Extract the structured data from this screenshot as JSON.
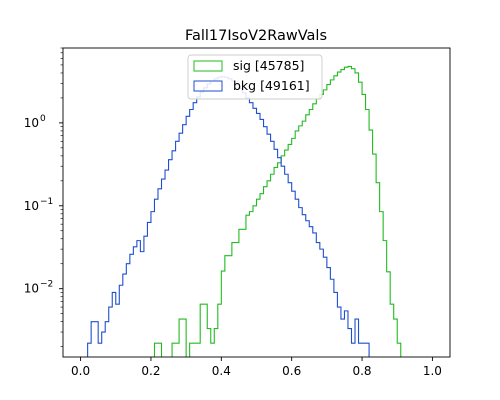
{
  "chart_data": {
    "type": "histogram",
    "title": "Fall17IsoV2RawVals",
    "xlabel": "",
    "ylabel": "",
    "xlim": [
      -0.05,
      1.05
    ],
    "ylim": [
      0.0015,
      8
    ],
    "yscale": "log",
    "grid": false,
    "legend_position": "top-center",
    "x_ticks": [
      0.0,
      0.2,
      0.4,
      0.6,
      0.8,
      1.0
    ],
    "x_tick_labels": [
      "0.0",
      "0.2",
      "0.4",
      "0.6",
      "0.8",
      "1.0"
    ],
    "y_ticks": [
      0.01,
      0.1,
      1
    ],
    "bin_edges": [
      0.0,
      0.01,
      0.02,
      0.03,
      0.04,
      0.05,
      0.06,
      0.07,
      0.08,
      0.09,
      0.1,
      0.11,
      0.12,
      0.13,
      0.14,
      0.15,
      0.16,
      0.17,
      0.18,
      0.19,
      0.2,
      0.21,
      0.22,
      0.23,
      0.24,
      0.25,
      0.26,
      0.27,
      0.28,
      0.29,
      0.3,
      0.31,
      0.32,
      0.33,
      0.34,
      0.35,
      0.36,
      0.37,
      0.38,
      0.39,
      0.4,
      0.41,
      0.42,
      0.43,
      0.44,
      0.45,
      0.46,
      0.47,
      0.48,
      0.49,
      0.5,
      0.51,
      0.52,
      0.53,
      0.54,
      0.55,
      0.56,
      0.57,
      0.58,
      0.59,
      0.6,
      0.61,
      0.62,
      0.63,
      0.64,
      0.65,
      0.66,
      0.67,
      0.68,
      0.69,
      0.7,
      0.71,
      0.72,
      0.73,
      0.74,
      0.75,
      0.76,
      0.77,
      0.78,
      0.79,
      0.8,
      0.81,
      0.82,
      0.83,
      0.84,
      0.85,
      0.86,
      0.87,
      0.88,
      0.89,
      0.9,
      0.91,
      0.92,
      0.93,
      0.94,
      0.95,
      0.96,
      0.97,
      0.98,
      0.99,
      1.0
    ],
    "series": [
      {
        "name": "sig [45785]",
        "color": "#22bb22",
        "values": [
          0,
          0,
          0,
          0,
          0,
          0,
          0,
          0,
          0,
          0,
          0,
          0,
          0,
          0,
          0,
          0,
          0,
          0,
          0,
          0,
          0,
          0.0022,
          0.0022,
          0,
          0,
          0,
          0.0022,
          0.0022,
          0.0043,
          0.0043,
          0,
          0.0022,
          0.0022,
          0.0022,
          0.0065,
          0.0065,
          0.0033,
          0.0022,
          0.0033,
          0.0065,
          0.0163,
          0.025,
          0.025,
          0.036,
          0.036,
          0.052,
          0.052,
          0.077,
          0.085,
          0.1,
          0.12,
          0.14,
          0.17,
          0.2,
          0.24,
          0.29,
          0.33,
          0.4,
          0.47,
          0.55,
          0.65,
          0.8,
          0.92,
          1.05,
          1.25,
          1.45,
          1.7,
          1.95,
          2.2,
          2.5,
          2.9,
          3.3,
          3.7,
          4.1,
          4.4,
          4.7,
          4.8,
          4.5,
          4.0,
          3.1,
          2.2,
          1.45,
          0.82,
          0.42,
          0.19,
          0.085,
          0.038,
          0.016,
          0.0065,
          0.0043,
          0.0022,
          0,
          0,
          0,
          0,
          0,
          0,
          0,
          0,
          0
        ]
      },
      {
        "name": "bkg [49161]",
        "color": "#1f4fd0",
        "values": [
          0,
          0,
          0.0022,
          0.004,
          0.004,
          0.0022,
          0.003,
          0.004,
          0.006,
          0.009,
          0.0065,
          0.011,
          0.015,
          0.02,
          0.026,
          0.032,
          0.038,
          0.028,
          0.043,
          0.063,
          0.085,
          0.12,
          0.16,
          0.21,
          0.27,
          0.36,
          0.46,
          0.6,
          0.75,
          0.95,
          1.2,
          1.45,
          1.75,
          2.05,
          2.35,
          2.65,
          2.95,
          3.2,
          3.4,
          3.55,
          3.6,
          3.55,
          3.4,
          3.2,
          2.9,
          2.6,
          2.3,
          2.0,
          1.75,
          1.5,
          1.3,
          1.1,
          0.9,
          0.73,
          0.6,
          0.48,
          0.38,
          0.3,
          0.24,
          0.19,
          0.15,
          0.12,
          0.095,
          0.078,
          0.066,
          0.056,
          0.047,
          0.036,
          0.03,
          0.024,
          0.018,
          0.013,
          0.009,
          0.006,
          0.0043,
          0.0054,
          0.0033,
          0.0022,
          0.0043,
          0.0022,
          0.0022,
          0.0022,
          0,
          0,
          0,
          0,
          0,
          0,
          0,
          0,
          0,
          0,
          0,
          0,
          0,
          0,
          0,
          0,
          0,
          0
        ]
      }
    ]
  }
}
